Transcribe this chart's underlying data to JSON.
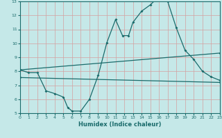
{
  "xlabel": "Humidex (Indice chaleur)",
  "xlim": [
    0,
    23
  ],
  "ylim": [
    5,
    13
  ],
  "yticks": [
    5,
    6,
    7,
    8,
    9,
    10,
    11,
    12,
    13
  ],
  "xticks": [
    0,
    1,
    2,
    3,
    4,
    5,
    6,
    7,
    8,
    9,
    10,
    11,
    12,
    13,
    14,
    15,
    16,
    17,
    18,
    19,
    20,
    21,
    22,
    23
  ],
  "bg_color": "#c5e8e8",
  "line_color": "#1a6b6b",
  "grid_color": "#d4a0a0",
  "line1_x": [
    0,
    1,
    2,
    3,
    4,
    5,
    5.5,
    6,
    7,
    8,
    9,
    10,
    11,
    11.8,
    12.5,
    13,
    14,
    15,
    16,
    17,
    18,
    19,
    20,
    21,
    22,
    23
  ],
  "line1_y": [
    8.1,
    7.9,
    7.9,
    6.6,
    6.4,
    6.15,
    5.4,
    5.15,
    5.15,
    6.0,
    7.7,
    10.05,
    11.7,
    10.55,
    10.55,
    11.5,
    12.3,
    12.75,
    13.35,
    13.0,
    11.1,
    9.5,
    8.85,
    8.0,
    7.6,
    7.35
  ],
  "line2_x": [
    0,
    23
  ],
  "line2_y": [
    8.1,
    9.3
  ],
  "line3_x": [
    0,
    23
  ],
  "line3_y": [
    7.55,
    7.2
  ]
}
